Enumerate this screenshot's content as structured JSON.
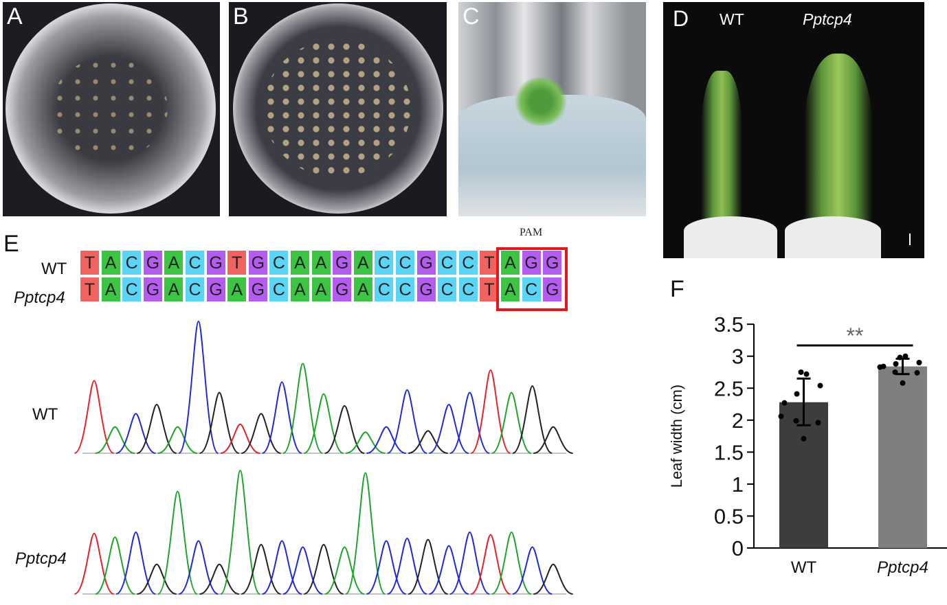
{
  "panels": {
    "A": {
      "label": "A"
    },
    "B": {
      "label": "B"
    },
    "C": {
      "label": "C"
    },
    "D": {
      "label": "D",
      "wt_label": "WT",
      "mutant_label": "Pptcp4"
    },
    "E": {
      "label": "E"
    },
    "F": {
      "label": "F"
    }
  },
  "alignment": {
    "pam_label": "PAM",
    "rows": [
      {
        "name": "WT",
        "sequence": "TACGACGTGCAAGACCGCCTAGG"
      },
      {
        "name": "Pptcp4",
        "sequence": "TACGACGAGCAAGACCGCCTACG"
      }
    ],
    "pam_start_index": 20,
    "base_colors": {
      "T": "#f0635f",
      "A": "#3cc443",
      "C": "#5bd5f5",
      "G": "#b45cf0"
    },
    "highlight_color": "#e8141b"
  },
  "chromatograms": {
    "trace_colors": {
      "r": "#e8202a",
      "g": "#1ea52a",
      "b": "#1f2ad8",
      "k": "#222222"
    },
    "WT": {
      "label": "WT",
      "peaks": [
        [
          "r",
          0.55
        ],
        [
          "g",
          0.2
        ],
        [
          "b",
          0.3
        ],
        [
          "k",
          0.37
        ],
        [
          "g",
          0.2
        ],
        [
          "b",
          1.0
        ],
        [
          "k",
          0.46
        ],
        [
          "r",
          0.22
        ],
        [
          "k",
          0.3
        ],
        [
          "b",
          0.54
        ],
        [
          "g",
          0.68
        ],
        [
          "g",
          0.45
        ],
        [
          "k",
          0.36
        ],
        [
          "g",
          0.16
        ],
        [
          "b",
          0.2
        ],
        [
          "b",
          0.48
        ],
        [
          "k",
          0.17
        ],
        [
          "b",
          0.37
        ],
        [
          "b",
          0.46
        ],
        [
          "r",
          0.63
        ],
        [
          "g",
          0.46
        ],
        [
          "k",
          0.51
        ],
        [
          "k",
          0.2
        ]
      ]
    },
    "Pptcp4": {
      "label": "Pptcp4",
      "peaks": [
        [
          "r",
          0.49
        ],
        [
          "g",
          0.46
        ],
        [
          "b",
          0.5
        ],
        [
          "k",
          0.24
        ],
        [
          "g",
          0.83
        ],
        [
          "b",
          0.43
        ],
        [
          "k",
          0.24
        ],
        [
          "g",
          1.0
        ],
        [
          "k",
          0.4
        ],
        [
          "b",
          0.43
        ],
        [
          "b",
          0.38
        ],
        [
          "k",
          0.4
        ],
        [
          "g",
          0.38
        ],
        [
          "g",
          0.98
        ],
        [
          "b",
          0.43
        ],
        [
          "b",
          0.45
        ],
        [
          "k",
          0.44
        ],
        [
          "b",
          0.39
        ],
        [
          "b",
          0.5
        ],
        [
          "r",
          0.48
        ],
        [
          "g",
          0.5
        ],
        [
          "b",
          0.38
        ],
        [
          "k",
          0.24
        ]
      ]
    }
  },
  "chart_data": {
    "type": "bar",
    "categories": [
      "WT",
      "Pptcp4"
    ],
    "values": [
      2.28,
      2.84
    ],
    "error": [
      [
        1.92,
        2.65
      ],
      [
        2.72,
        2.96
      ]
    ],
    "points": [
      [
        2.75,
        2.72,
        2.54,
        2.41,
        2.27,
        2.06,
        1.99,
        1.96,
        1.71
      ],
      [
        2.98,
        3.0,
        2.9,
        2.88,
        2.84,
        2.83,
        2.75,
        2.74,
        2.58
      ]
    ],
    "ylabel": "Leaf width (cm)",
    "ylim": [
      0,
      3.5
    ],
    "yticks": [
      "0",
      "0.5",
      "1",
      "1.5",
      "2",
      "2.5",
      "3",
      "3.5"
    ],
    "significance": "**",
    "bar_colors": [
      "#3d3d3d",
      "#7f7f7f"
    ]
  }
}
